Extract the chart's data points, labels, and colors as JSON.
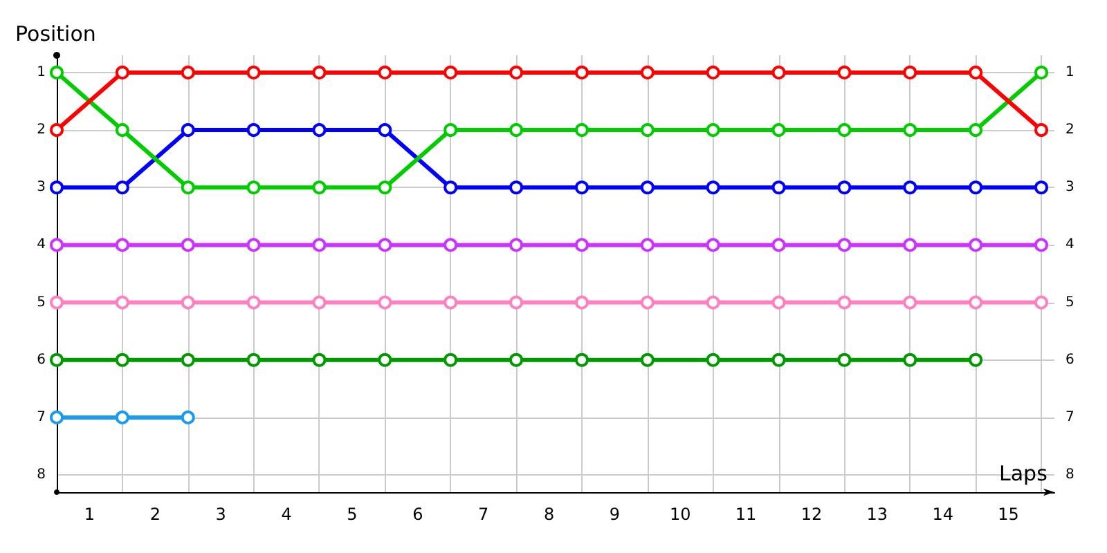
{
  "chart_data": {
    "type": "line",
    "xlabel": "Laps",
    "ylabel": "Position",
    "x": [
      0,
      1,
      2,
      3,
      4,
      5,
      6,
      7,
      8,
      9,
      10,
      11,
      12,
      13,
      14,
      15
    ],
    "xlim": [
      0,
      15.2
    ],
    "xticks": [
      {
        "value": 0,
        "label": null
      },
      {
        "value": 0.5,
        "label": "1"
      },
      {
        "value": 1,
        "label": null
      },
      {
        "value": 1.5,
        "label": "2"
      },
      {
        "value": 2,
        "label": null
      },
      {
        "value": 2.5,
        "label": "3"
      },
      {
        "value": 3,
        "label": null
      },
      {
        "value": 3.5,
        "label": "4"
      },
      {
        "value": 4,
        "label": null
      },
      {
        "value": 4.5,
        "label": "5"
      },
      {
        "value": 5,
        "label": null
      },
      {
        "value": 5.5,
        "label": "6"
      },
      {
        "value": 6,
        "label": null
      },
      {
        "value": 6.5,
        "label": "7"
      },
      {
        "value": 7,
        "label": null
      },
      {
        "value": 7.5,
        "label": "8"
      },
      {
        "value": 8,
        "label": null
      },
      {
        "value": 8.5,
        "label": "9"
      },
      {
        "value": 9,
        "label": null
      },
      {
        "value": 9.5,
        "label": "10"
      },
      {
        "value": 10,
        "label": null
      },
      {
        "value": 10.5,
        "label": "11"
      },
      {
        "value": 11,
        "label": null
      },
      {
        "value": 11.5,
        "label": "12"
      },
      {
        "value": 12,
        "label": null
      },
      {
        "value": 12.5,
        "label": "13"
      },
      {
        "value": 13,
        "label": null
      },
      {
        "value": 13.5,
        "label": "14"
      },
      {
        "value": 14,
        "label": null
      },
      {
        "value": 14.5,
        "label": "15"
      },
      {
        "value": 15,
        "label": null
      }
    ],
    "ylim": [
      8.3,
      0.7
    ],
    "yticks": [
      1,
      2,
      3,
      4,
      5,
      6,
      7,
      8
    ],
    "y2lim": [
      8.3,
      0.7
    ],
    "y2ticks": [
      1,
      2,
      3,
      4,
      5,
      6,
      7,
      8
    ],
    "grid": true,
    "marker": "circle",
    "line_style": "solid",
    "series": [
      {
        "color": "#ff0000",
        "values": [
          2,
          1,
          1,
          1,
          1,
          1,
          1,
          1,
          1,
          1,
          1,
          1,
          1,
          1,
          1,
          2
        ]
      },
      {
        "color": "#00cc00",
        "values": [
          1,
          2,
          3,
          3,
          3,
          3,
          2,
          2,
          2,
          2,
          2,
          2,
          2,
          2,
          2,
          1
        ]
      },
      {
        "color": "#0000ff",
        "values": [
          3,
          3,
          2,
          2,
          2,
          2,
          3,
          3,
          3,
          3,
          3,
          3,
          3,
          3,
          3,
          3
        ]
      },
      {
        "color": "#cc33ff",
        "values": [
          4,
          4,
          4,
          4,
          4,
          4,
          4,
          4,
          4,
          4,
          4,
          4,
          4,
          4,
          4,
          4
        ]
      },
      {
        "color": "#ff80c0",
        "values": [
          5,
          5,
          5,
          5,
          5,
          5,
          5,
          5,
          5,
          5,
          5,
          5,
          5,
          5,
          5,
          5
        ]
      },
      {
        "color": "#009900",
        "values": [
          6,
          6,
          6,
          6,
          6,
          6,
          6,
          6,
          6,
          6,
          6,
          6,
          6,
          6,
          6,
          null
        ]
      },
      {
        "color": "#1a9af0",
        "values": [
          7,
          7,
          7,
          null,
          null,
          null,
          null,
          null,
          null,
          null,
          null,
          null,
          null,
          null,
          null,
          null
        ]
      }
    ]
  }
}
